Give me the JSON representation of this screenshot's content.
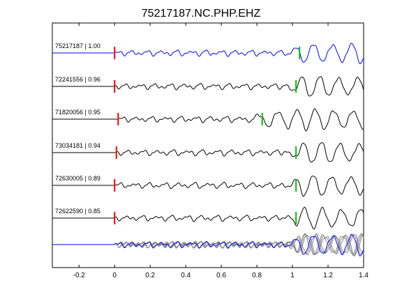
{
  "chart_data": {
    "type": "line",
    "title": "75217187.NC.PHP.EHZ",
    "xlim": [
      -0.35,
      1.4
    ],
    "x_ticks": [
      "-0.2",
      "0",
      "0.2",
      "0.4",
      "0.6",
      "0.8",
      "1",
      "1.2",
      "1.4"
    ],
    "x_tick_values": [
      -0.2,
      0,
      0.2,
      0.4,
      0.6,
      0.8,
      1.0,
      1.2,
      1.4
    ],
    "grid": false,
    "series": [
      {
        "name": "75217187 | 1.00",
        "color": "#0000ff",
        "p_pick": 0.0,
        "s_pick": 1.04
      },
      {
        "name": "72241556 | 0.96",
        "color": "#000000",
        "p_pick": 0.0,
        "s_pick": 1.02
      },
      {
        "name": "71820056 | 0.95",
        "color": "#000000",
        "p_pick": 0.02,
        "s_pick": 0.83
      },
      {
        "name": "73034181 | 0.94",
        "color": "#000000",
        "p_pick": 0.01,
        "s_pick": 1.02
      },
      {
        "name": "72630005 | 0.89",
        "color": "#000000",
        "p_pick": 0.0,
        "s_pick": 1.02
      },
      {
        "name": "72622590 | 0.85",
        "color": "#000000",
        "p_pick": 0.0,
        "s_pick": 1.02
      }
    ],
    "stack_label": "",
    "pick_colors": {
      "p": "#ff0000",
      "s": "#00c000"
    }
  }
}
